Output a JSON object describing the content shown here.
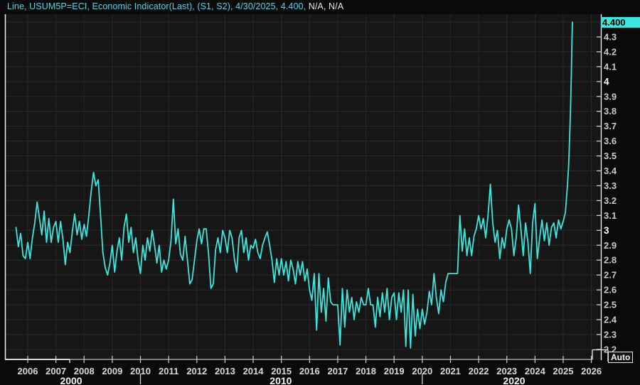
{
  "title": {
    "primary": "Line, USUM5P=ECI, Economic Indicator(Last), (S1, S2), 4/30/2025, 4.400, ",
    "secondary": "N/A, N/A"
  },
  "colors": {
    "background": "#0a0a0a",
    "plot_bg": "#161616",
    "grid": "#2a2a2a",
    "line": "#3ce6dc",
    "axis_bright": "#f0f0f0",
    "axis_dim": "#b9b9b9",
    "tick": "#cfcfcf",
    "last_value_bg": "#3ce6dc",
    "last_value_text": "#000000",
    "title_text": "#53d6e6",
    "title_text_secondary": "#e8e8e8"
  },
  "y_axis": {
    "last_value_label": "4.400",
    "auto_label": "Auto",
    "ticks": [
      {
        "label": "4.3",
        "value": 4.3
      },
      {
        "label": "4.2",
        "value": 4.2
      },
      {
        "label": "4.1",
        "value": 4.1
      },
      {
        "label": "4",
        "value": 4.0
      },
      {
        "label": "3.9",
        "value": 3.9
      },
      {
        "label": "3.8",
        "value": 3.8
      },
      {
        "label": "3.7",
        "value": 3.7
      },
      {
        "label": "3.6",
        "value": 3.6
      },
      {
        "label": "3.5",
        "value": 3.5
      },
      {
        "label": "3.4",
        "value": 3.4
      },
      {
        "label": "3.3",
        "value": 3.3
      },
      {
        "label": "3.2",
        "value": 3.2
      },
      {
        "label": "3.1",
        "value": 3.1
      },
      {
        "label": "3",
        "value": 3.0
      },
      {
        "label": "2.9",
        "value": 2.9
      },
      {
        "label": "2.8",
        "value": 2.8
      },
      {
        "label": "2.7",
        "value": 2.7
      },
      {
        "label": "2.6",
        "value": 2.6
      },
      {
        "label": "2.5",
        "value": 2.5
      },
      {
        "label": "2.4",
        "value": 2.4
      },
      {
        "label": "2.3",
        "value": 2.3
      },
      {
        "label": "2.2",
        "value": 2.2
      }
    ]
  },
  "x_axis": {
    "years": [
      2006,
      2007,
      2008,
      2009,
      2010,
      2011,
      2012,
      2013,
      2014,
      2015,
      2016,
      2017,
      2018,
      2019,
      2020,
      2021,
      2022,
      2023,
      2024,
      2025,
      2026
    ],
    "decade_labels": [
      {
        "label": "2000",
        "center_year": 2007.54
      },
      {
        "label": "2010",
        "center_year": 2014.98
      },
      {
        "label": "2020",
        "center_year": 2023.26
      }
    ],
    "decade_separators": [
      2010,
      2020
    ]
  },
  "chart_data": {
    "type": "line",
    "title": "USUM5P=ECI Economic Indicator (Last)",
    "legend": "Line, USUM5P=ECI, Economic Indicator(Last)",
    "last_point": {
      "date": "4/30/2025",
      "value": 4.4
    },
    "x_range_years": [
      2005.19,
      2026.35
    ],
    "ylim": [
      2.13,
      4.43
    ],
    "grid": true,
    "series": {
      "name": "USUM5P=ECI",
      "start_year": 2005.5833,
      "step_years": 0.08333,
      "monthly_values": [
        3.02,
        2.89,
        2.98,
        2.83,
        2.81,
        2.92,
        2.81,
        2.95,
        3.05,
        3.19,
        3.08,
        2.97,
        3.13,
        2.92,
        3.08,
        2.92,
        3.02,
        3.06,
        2.92,
        3.06,
        2.94,
        2.77,
        2.92,
        2.85,
        2.99,
        3.11,
        2.97,
        3.06,
        2.94,
        3.04,
        2.96,
        3.1,
        3.26,
        3.39,
        3.3,
        3.34,
        3.1,
        2.85,
        2.75,
        2.7,
        2.78,
        2.9,
        2.72,
        2.86,
        2.95,
        2.8,
        3.02,
        3.11,
        2.92,
        3.02,
        2.85,
        2.95,
        2.8,
        2.71,
        2.9,
        2.8,
        2.95,
        2.86,
        3.0,
        2.9,
        2.78,
        2.9,
        2.72,
        2.8,
        2.74,
        2.8,
        2.93,
        3.21,
        2.91,
        3.01,
        2.84,
        2.8,
        2.96,
        2.8,
        2.64,
        2.67,
        2.8,
        2.93,
        3.01,
        2.91,
        3.01,
        3.01,
        2.84,
        2.61,
        2.64,
        2.87,
        2.95,
        2.85,
        3.0,
        2.95,
        2.85,
        3.0,
        2.95,
        2.81,
        2.72,
        2.95,
        3.0,
        2.85,
        2.95,
        2.8,
        2.9,
        2.88,
        2.94,
        2.85,
        2.81,
        2.9,
        2.95,
        2.99,
        2.9,
        2.8,
        2.65,
        2.81,
        2.7,
        2.81,
        2.7,
        2.79,
        2.66,
        2.8,
        2.74,
        2.64,
        2.79,
        2.7,
        2.79,
        2.66,
        2.74,
        2.6,
        2.53,
        2.71,
        2.33,
        2.71,
        2.45,
        2.61,
        2.39,
        2.68,
        2.52,
        2.5,
        2.5,
        2.5,
        2.23,
        2.61,
        2.35,
        2.6,
        2.45,
        2.55,
        2.4,
        2.52,
        2.45,
        2.55,
        2.5,
        2.5,
        2.61,
        2.5,
        2.5,
        2.35,
        2.55,
        2.42,
        2.58,
        2.45,
        2.61,
        2.4,
        2.55,
        2.58,
        2.4,
        2.58,
        2.45,
        2.6,
        2.22,
        2.6,
        2.21,
        2.57,
        2.29,
        2.47,
        2.34,
        2.47,
        2.37,
        2.45,
        2.59,
        2.5,
        2.71,
        2.55,
        2.44,
        2.6,
        2.52,
        2.65,
        2.71,
        2.71,
        2.71,
        2.71,
        2.71,
        3.1,
        2.86,
        3.01,
        2.83,
        2.95,
        2.83,
        2.96,
        3.01,
        3.1,
        3.01,
        3.08,
        2.95,
        3.1,
        3.31,
        3.05,
        2.92,
        3.0,
        2.81,
        2.95,
        2.88,
        3.01,
        3.07,
        3.01,
        2.83,
        2.95,
        3.17,
        3.01,
        2.83,
        3.05,
        2.92,
        2.71,
        3.05,
        3.18,
        2.81,
        2.95,
        3.07,
        2.93,
        3.05,
        2.9,
        3.02,
        3.05,
        2.95,
        3.07,
        3.01
      ],
      "tail": [
        [
          2025.0,
          3.06
        ],
        [
          2025.08,
          3.12
        ],
        [
          2025.15,
          3.3
        ],
        [
          2025.19,
          3.42
        ],
        [
          2025.23,
          3.63
        ],
        [
          2025.26,
          3.82
        ],
        [
          2025.29,
          4.06
        ],
        [
          2025.31,
          4.27
        ],
        [
          2025.33,
          4.4
        ]
      ]
    }
  }
}
